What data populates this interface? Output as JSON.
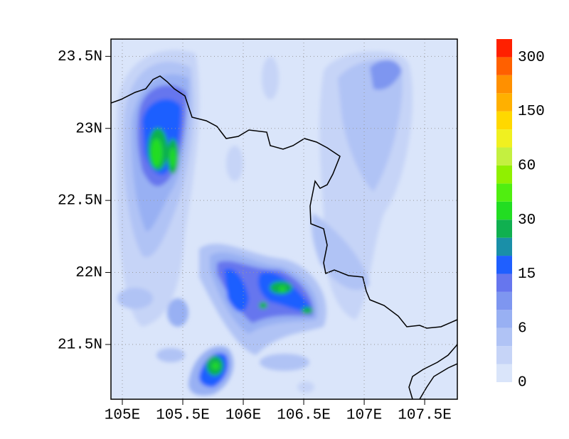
{
  "map": {
    "xlim": [
      104.906,
      107.77
    ],
    "ylim": [
      21.12,
      23.62
    ],
    "xticks": [
      {
        "value": 105,
        "label": "105E"
      },
      {
        "value": 105.5,
        "label": "105.5E"
      },
      {
        "value": 106,
        "label": "106E"
      },
      {
        "value": 106.5,
        "label": "106.5E"
      },
      {
        "value": 107,
        "label": "107E"
      },
      {
        "value": 107.5,
        "label": "107.5E"
      }
    ],
    "yticks": [
      {
        "value": 21.5,
        "label": "21.5N"
      },
      {
        "value": 22,
        "label": "22N"
      },
      {
        "value": 22.5,
        "label": "22.5N"
      },
      {
        "value": 23,
        "label": "23N"
      },
      {
        "value": 23.5,
        "label": "23.5N"
      }
    ],
    "grid": true
  },
  "colorbar": {
    "colors": [
      "#dae5fa",
      "#c6d4f7",
      "#b0c3f5",
      "#98b0f3",
      "#7e96f0",
      "#6676ee",
      "#1f5fff",
      "#1a8fa8",
      "#10b050",
      "#22dd22",
      "#50ee10",
      "#90f000",
      "#c4f040",
      "#f0f020",
      "#ffd800",
      "#ffb000",
      "#ff9000",
      "#ff6000",
      "#ff2000"
    ],
    "labels": [
      0,
      6,
      15,
      30,
      60,
      150,
      300
    ],
    "boxes_per_label": 3
  }
}
